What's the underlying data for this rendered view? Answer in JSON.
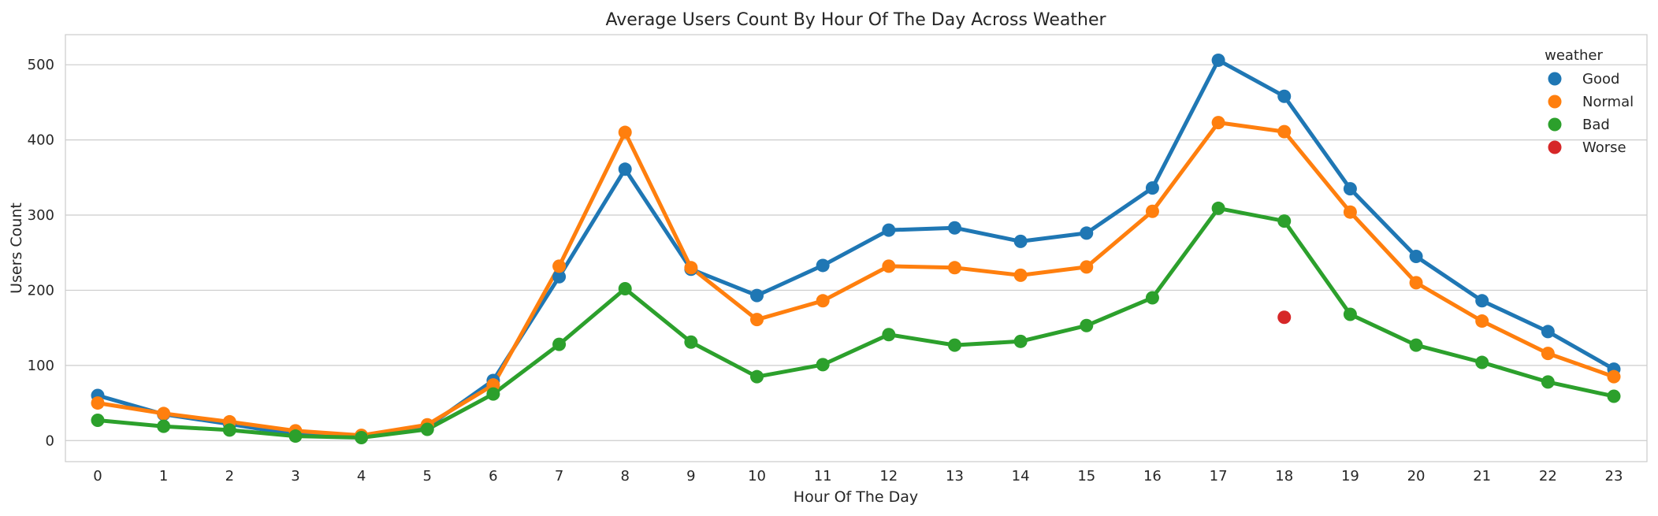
{
  "chart_data": {
    "type": "line",
    "title": "Average Users Count By Hour Of The Day Across Weather",
    "xlabel": "Hour Of The Day",
    "ylabel": "Users Count",
    "categories": [
      "0",
      "1",
      "2",
      "3",
      "4",
      "5",
      "6",
      "7",
      "8",
      "9",
      "10",
      "11",
      "12",
      "13",
      "14",
      "15",
      "16",
      "17",
      "18",
      "19",
      "20",
      "21",
      "22",
      "23"
    ],
    "ylim": [
      -28,
      540
    ],
    "yticks": [
      0,
      100,
      200,
      300,
      400,
      500
    ],
    "grid": "horizontal",
    "legend": {
      "title": "weather",
      "position": "top-right"
    },
    "series": [
      {
        "name": "Good",
        "color": "#1f77b4",
        "values": [
          60,
          35,
          22,
          8,
          5,
          18,
          80,
          218,
          361,
          228,
          193,
          233,
          280,
          283,
          265,
          276,
          336,
          506,
          458,
          335,
          245,
          186,
          145,
          95
        ]
      },
      {
        "name": "Normal",
        "color": "#ff7f0e",
        "values": [
          50,
          36,
          25,
          13,
          7,
          21,
          74,
          232,
          410,
          230,
          161,
          186,
          232,
          230,
          220,
          231,
          305,
          423,
          411,
          304,
          210,
          159,
          116,
          85
        ]
      },
      {
        "name": "Bad",
        "color": "#2ca02c",
        "values": [
          27,
          19,
          14,
          6,
          4,
          15,
          62,
          128,
          202,
          131,
          85,
          101,
          141,
          127,
          132,
          153,
          190,
          309,
          292,
          168,
          127,
          104,
          78,
          59
        ]
      },
      {
        "name": "Worse",
        "color": "#d62728",
        "values": [
          null,
          null,
          null,
          null,
          null,
          null,
          null,
          null,
          null,
          null,
          null,
          null,
          null,
          null,
          null,
          null,
          null,
          null,
          164,
          null,
          null,
          null,
          null,
          null
        ]
      }
    ]
  }
}
